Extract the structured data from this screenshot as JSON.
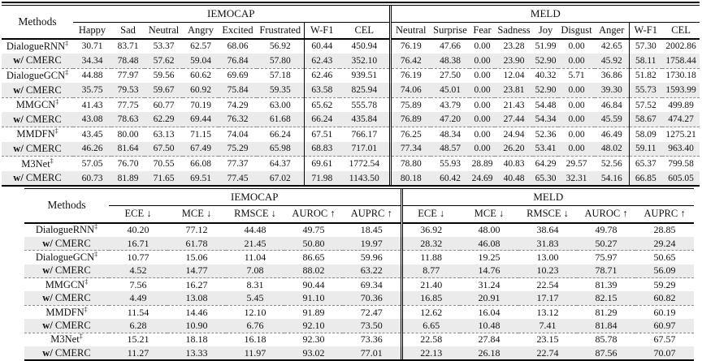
{
  "emotion_table": {
    "methods_header": "Methods",
    "groups": [
      {
        "label": "IEMOCAP",
        "columns": [
          "Happy",
          "Sad",
          "Neutral",
          "Angry",
          "Excited",
          "Frustrated",
          "W-F1",
          "CEL"
        ]
      },
      {
        "label": "MELD",
        "columns": [
          "Neutral",
          "Surprise",
          "Fear",
          "Sadness",
          "Joy",
          "Disgust",
          "Anger",
          "W-F1",
          "CEL"
        ]
      }
    ],
    "rows": [
      {
        "prefix": "",
        "name": "DialogueRNN",
        "sup": "‡",
        "values": [
          "30.71",
          "83.71",
          "53.37",
          "62.57",
          "68.06",
          "56.92",
          "60.44",
          "450.94",
          "76.19",
          "47.66",
          "0.00",
          "23.28",
          "51.99",
          "0.00",
          "42.65",
          "57.30",
          "2002.86"
        ]
      },
      {
        "prefix": "w/",
        "name": " CMERC",
        "sup": "",
        "values": [
          "34.34",
          "78.48",
          "57.62",
          "59.04",
          "76.84",
          "57.80",
          "62.43",
          "352.10",
          "76.42",
          "48.38",
          "0.00",
          "23.90",
          "52.90",
          "0.00",
          "45.92",
          "58.11",
          "1758.44"
        ]
      },
      {
        "prefix": "",
        "name": "DialogueGCN",
        "sup": "‡",
        "values": [
          "44.88",
          "77.97",
          "59.56",
          "60.62",
          "69.69",
          "57.18",
          "62.46",
          "939.51",
          "76.19",
          "27.50",
          "0.00",
          "12.04",
          "40.32",
          "5.71",
          "36.86",
          "51.82",
          "1730.18"
        ]
      },
      {
        "prefix": "w/",
        "name": " CMERC",
        "sup": "",
        "values": [
          "35.75",
          "79.53",
          "59.67",
          "60.92",
          "75.84",
          "59.35",
          "63.58",
          "825.94",
          "74.06",
          "45.01",
          "0.00",
          "23.81",
          "52.90",
          "0.00",
          "39.30",
          "55.73",
          "1593.99"
        ]
      },
      {
        "prefix": "",
        "name": "MMGCN",
        "sup": "‡",
        "values": [
          "41.43",
          "77.75",
          "60.77",
          "70.19",
          "74.29",
          "63.00",
          "65.62",
          "555.78",
          "75.89",
          "43.79",
          "0.00",
          "21.43",
          "54.48",
          "0.00",
          "46.84",
          "57.52",
          "499.89"
        ]
      },
      {
        "prefix": "w/",
        "name": " CMERC",
        "sup": "",
        "values": [
          "43.08",
          "78.63",
          "62.29",
          "69.44",
          "76.32",
          "61.68",
          "66.24",
          "435.84",
          "76.89",
          "47.20",
          "0.00",
          "27.44",
          "54.34",
          "0.00",
          "45.59",
          "58.67",
          "474.27"
        ]
      },
      {
        "prefix": "",
        "name": "MMDFN",
        "sup": "‡",
        "values": [
          "43.45",
          "80.00",
          "63.13",
          "71.15",
          "74.04",
          "66.24",
          "67.51",
          "766.17",
          "76.25",
          "48.34",
          "0.00",
          "24.94",
          "52.36",
          "0.00",
          "46.49",
          "58.09",
          "1275.21"
        ]
      },
      {
        "prefix": "w/",
        "name": " CMERC",
        "sup": "",
        "values": [
          "46.26",
          "81.64",
          "67.50",
          "67.49",
          "75.29",
          "65.98",
          "68.83",
          "717.01",
          "77.34",
          "48.57",
          "0.00",
          "26.20",
          "53.41",
          "0.00",
          "48.02",
          "59.11",
          "963.40"
        ]
      },
      {
        "prefix": "",
        "name": "M3Net",
        "sup": "‡",
        "values": [
          "57.05",
          "76.70",
          "70.55",
          "66.08",
          "77.37",
          "64.37",
          "69.61",
          "1772.54",
          "78.80",
          "55.93",
          "28.89",
          "40.83",
          "64.29",
          "29.57",
          "52.56",
          "65.37",
          "799.58"
        ]
      },
      {
        "prefix": "w/",
        "name": " CMERC",
        "sup": "",
        "values": [
          "60.73",
          "81.89",
          "71.65",
          "69.51",
          "77.45",
          "67.02",
          "71.98",
          "1143.50",
          "80.18",
          "60.42",
          "24.69",
          "40.48",
          "65.30",
          "32.31",
          "54.16",
          "66.85",
          "605.05"
        ]
      }
    ]
  },
  "calibration_table": {
    "methods_header": "Methods",
    "groups": [
      {
        "label": "IEMOCAP",
        "columns": [
          "ECE ↓",
          "MCE ↓",
          "RMSCE ↓",
          "AUROC ↑",
          "AUPRC ↑"
        ]
      },
      {
        "label": "MELD",
        "columns": [
          "ECE ↓",
          "MCE ↓",
          "RMSCE ↓",
          "AUROC ↑",
          "AUPRC ↑"
        ]
      }
    ],
    "rows": [
      {
        "prefix": "",
        "name": "DialogueRNN",
        "sup": "‡",
        "values": [
          "40.20",
          "77.12",
          "44.48",
          "49.75",
          "18.45",
          "36.92",
          "48.00",
          "38.64",
          "49.78",
          "28.85"
        ]
      },
      {
        "prefix": "w/",
        "name": " CMERC",
        "sup": "",
        "values": [
          "16.71",
          "61.78",
          "21.45",
          "50.80",
          "19.97",
          "28.32",
          "46.08",
          "31.83",
          "50.27",
          "29.24"
        ]
      },
      {
        "prefix": "",
        "name": "DialogueGCN",
        "sup": "‡",
        "values": [
          "10.77",
          "15.06",
          "11.04",
          "86.65",
          "59.96",
          "11.88",
          "19.25",
          "13.00",
          "75.97",
          "50.65"
        ]
      },
      {
        "prefix": "w/",
        "name": " CMERC",
        "sup": "",
        "values": [
          "4.52",
          "14.77",
          "7.08",
          "88.02",
          "63.22",
          "8.77",
          "14.76",
          "10.23",
          "78.71",
          "56.09"
        ]
      },
      {
        "prefix": "",
        "name": "MMGCN",
        "sup": "‡",
        "values": [
          "7.56",
          "16.27",
          "8.31",
          "90.44",
          "69.34",
          "21.40",
          "31.24",
          "22.54",
          "81.39",
          "59.29"
        ]
      },
      {
        "prefix": "w/",
        "name": " CMERC",
        "sup": "",
        "values": [
          "4.49",
          "13.08",
          "5.45",
          "91.10",
          "70.36",
          "16.85",
          "20.91",
          "17.17",
          "82.15",
          "60.82"
        ]
      },
      {
        "prefix": "",
        "name": "MMDFN",
        "sup": "‡",
        "values": [
          "11.54",
          "14.46",
          "12.10",
          "91.89",
          "72.47",
          "12.62",
          "16.04",
          "13.12",
          "81.29",
          "60.19"
        ]
      },
      {
        "prefix": "w/",
        "name": " CMERC",
        "sup": "",
        "values": [
          "6.28",
          "10.90",
          "6.76",
          "92.10",
          "73.50",
          "6.65",
          "10.48",
          "7.41",
          "81.84",
          "60.97"
        ]
      },
      {
        "prefix": "",
        "name": "M3Net",
        "sup": "‡",
        "values": [
          "15.21",
          "18.18",
          "16.18",
          "92.30",
          "73.36",
          "22.58",
          "27.84",
          "23.15",
          "85.78",
          "67.57"
        ]
      },
      {
        "prefix": "w/",
        "name": " CMERC",
        "sup": "",
        "values": [
          "11.27",
          "13.33",
          "11.97",
          "93.02",
          "77.01",
          "22.13",
          "26.18",
          "22.74",
          "87.56",
          "70.07"
        ]
      }
    ]
  }
}
